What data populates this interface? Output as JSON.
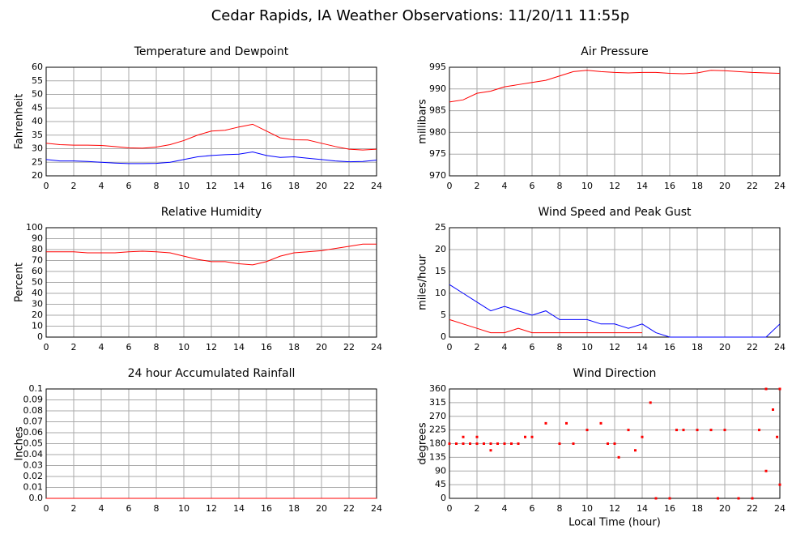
{
  "title": "Cedar Rapids, IA Weather Observations: 11/20/11 11:55p",
  "chart_data": [
    {
      "type": "line",
      "title": "Temperature and Dewpoint",
      "ylabel": "Fahrenheit",
      "x": [
        0,
        1,
        2,
        3,
        4,
        5,
        6,
        7,
        8,
        9,
        10,
        11,
        12,
        13,
        14,
        15,
        16,
        17,
        18,
        19,
        20,
        21,
        22,
        23,
        24
      ],
      "series": [
        {
          "name": "Temperature",
          "color": "#ff0000",
          "values": [
            32,
            31.5,
            31.3,
            31.3,
            31.2,
            30.8,
            30.3,
            30.2,
            30.6,
            31.5,
            33,
            35,
            36.5,
            36.8,
            38,
            39,
            36.5,
            34,
            33.3,
            33.2,
            32,
            30.8,
            29.8,
            29.5,
            29.8
          ]
        },
        {
          "name": "Dewpoint",
          "color": "#0000ff",
          "values": [
            26,
            25.5,
            25.5,
            25.3,
            25,
            24.7,
            24.5,
            24.5,
            24.6,
            25,
            26,
            27,
            27.5,
            27.8,
            28,
            28.8,
            27.5,
            26.8,
            27,
            26.5,
            26,
            25.5,
            25.2,
            25.3,
            25.8
          ]
        }
      ],
      "xlim": [
        0,
        24
      ],
      "xticks": [
        0,
        2,
        4,
        6,
        8,
        10,
        12,
        14,
        16,
        18,
        20,
        22,
        24
      ],
      "ylim": [
        20,
        60
      ],
      "yticks": [
        20,
        25,
        30,
        35,
        40,
        45,
        50,
        55,
        60
      ],
      "grid": true
    },
    {
      "type": "line",
      "title": "Air Pressure",
      "ylabel": "millibars",
      "x": [
        0,
        1,
        2,
        3,
        4,
        5,
        6,
        7,
        8,
        9,
        10,
        11,
        12,
        13,
        14,
        15,
        16,
        17,
        18,
        19,
        20,
        21,
        22,
        23,
        24
      ],
      "series": [
        {
          "name": "Pressure",
          "color": "#ff0000",
          "values": [
            987,
            987.5,
            989,
            989.5,
            990.5,
            991,
            991.5,
            992,
            993,
            994,
            994.3,
            994,
            993.8,
            993.7,
            993.8,
            993.8,
            993.6,
            993.5,
            993.7,
            994.3,
            994.2,
            994,
            993.8,
            993.7,
            993.6
          ]
        }
      ],
      "xlim": [
        0,
        24
      ],
      "xticks": [
        0,
        2,
        4,
        6,
        8,
        10,
        12,
        14,
        16,
        18,
        20,
        22,
        24
      ],
      "ylim": [
        970,
        995
      ],
      "yticks": [
        970,
        975,
        980,
        985,
        990,
        995
      ],
      "grid": true
    },
    {
      "type": "line",
      "title": "Relative Humidity",
      "ylabel": "Percent",
      "x": [
        0,
        1,
        2,
        3,
        4,
        5,
        6,
        7,
        8,
        9,
        10,
        11,
        12,
        13,
        14,
        15,
        16,
        17,
        18,
        19,
        20,
        21,
        22,
        23,
        24
      ],
      "series": [
        {
          "name": "Humidity",
          "color": "#ff0000",
          "values": [
            78,
            78,
            78,
            77,
            77,
            77,
            78,
            78.5,
            78,
            77,
            74,
            71,
            69,
            69,
            67,
            66,
            69,
            74,
            77,
            78,
            79,
            81,
            83,
            85,
            85
          ]
        }
      ],
      "xlim": [
        0,
        24
      ],
      "xticks": [
        0,
        2,
        4,
        6,
        8,
        10,
        12,
        14,
        16,
        18,
        20,
        22,
        24
      ],
      "ylim": [
        0,
        100
      ],
      "yticks": [
        0,
        10,
        20,
        30,
        40,
        50,
        60,
        70,
        80,
        90,
        100
      ],
      "grid": true
    },
    {
      "type": "line",
      "title": "Wind Speed and Peak Gust",
      "ylabel": "miles/hour",
      "x": [
        0,
        1,
        2,
        3,
        4,
        5,
        6,
        7,
        8,
        9,
        10,
        11,
        12,
        13,
        14,
        15,
        16,
        17,
        18,
        19,
        20,
        21,
        22,
        23,
        24
      ],
      "series": [
        {
          "name": "Wind Speed",
          "color": "#0000ff",
          "values": [
            12,
            10,
            8,
            6,
            7,
            6,
            5,
            6,
            4,
            4,
            4,
            3,
            3,
            2,
            3,
            1,
            0,
            0,
            0,
            0,
            0,
            0,
            0,
            0,
            3
          ]
        },
        {
          "name": "Peak Gust",
          "color": "#ff0000",
          "values": [
            4,
            3,
            2,
            1,
            1,
            2,
            1,
            1,
            1,
            1,
            1,
            1,
            1,
            1,
            1,
            null,
            null,
            null,
            null,
            null,
            null,
            null,
            null,
            null,
            null
          ]
        }
      ],
      "xlim": [
        0,
        24
      ],
      "xticks": [
        0,
        2,
        4,
        6,
        8,
        10,
        12,
        14,
        16,
        18,
        20,
        22,
        24
      ],
      "ylim": [
        0,
        25
      ],
      "yticks": [
        0,
        5,
        10,
        15,
        20,
        25
      ],
      "grid": true
    },
    {
      "type": "line",
      "title": "24 hour Accumulated Rainfall",
      "ylabel": "Inches",
      "x": [
        0,
        24
      ],
      "series": [
        {
          "name": "Rainfall",
          "color": "#ff0000",
          "values": [
            0,
            0
          ]
        }
      ],
      "xlim": [
        0,
        24
      ],
      "xticks": [
        0,
        2,
        4,
        6,
        8,
        10,
        12,
        14,
        16,
        18,
        20,
        22,
        24
      ],
      "ylim": [
        0,
        0.1
      ],
      "yticks": [
        {
          "value": 0,
          "label": "0.0"
        },
        0.01,
        0.02,
        0.03,
        0.04,
        0.05,
        0.06,
        0.07,
        0.08,
        0.09,
        0.1
      ],
      "grid": true
    },
    {
      "type": "scatter",
      "title": "Wind Direction",
      "ylabel": "degrees",
      "xlabel": "Local Time (hour)",
      "color": "#ff0000",
      "x": [
        0,
        0.5,
        1,
        1.5,
        2,
        2.5,
        3,
        3.5,
        4,
        4.5,
        5,
        1,
        2,
        3,
        5.5,
        6,
        7,
        8,
        8.5,
        9,
        10,
        11,
        11.5,
        12,
        12.3,
        13,
        13.5,
        14,
        14.6,
        15,
        16,
        16.5,
        17,
        18,
        19,
        19.5,
        20,
        21,
        22,
        22.5,
        23,
        23,
        23.5,
        23.8,
        24,
        24
      ],
      "values": [
        180,
        180,
        180,
        180,
        180,
        180,
        180,
        180,
        180,
        180,
        180,
        202,
        202,
        158,
        202,
        202,
        247,
        180,
        247,
        180,
        225,
        247,
        180,
        180,
        135,
        225,
        158,
        202,
        315,
        0,
        0,
        225,
        225,
        225,
        225,
        0,
        225,
        0,
        0,
        225,
        360,
        90,
        292,
        202,
        45,
        360
      ],
      "xlim": [
        0,
        24
      ],
      "xticks": [
        0,
        2,
        4,
        6,
        8,
        10,
        12,
        14,
        16,
        18,
        20,
        22,
        24
      ],
      "ylim": [
        0,
        360
      ],
      "yticks": [
        0,
        45,
        90,
        135,
        180,
        225,
        270,
        315,
        360
      ],
      "grid": true
    }
  ]
}
